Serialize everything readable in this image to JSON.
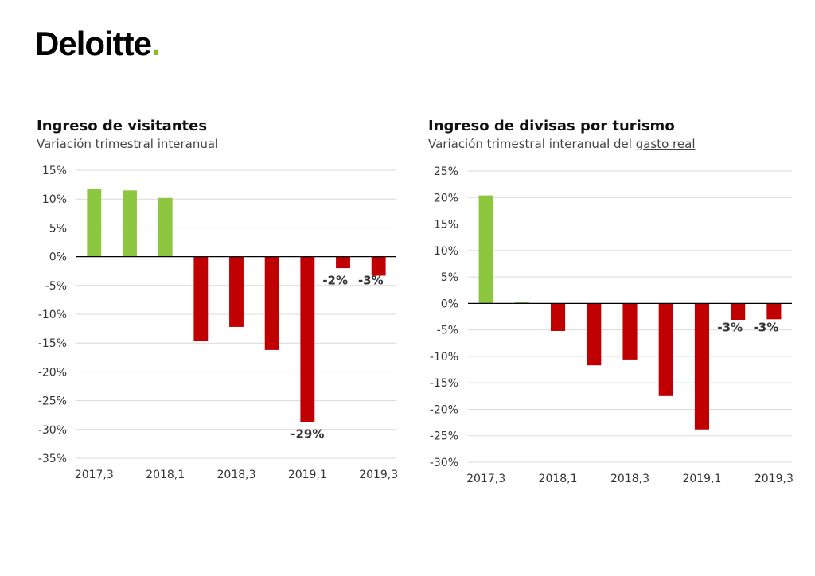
{
  "logo": {
    "text": "Deloitte",
    "dot": "."
  },
  "colors": {
    "positive": "#8dc63f",
    "negative": "#c00000",
    "grid": "#d9d9d9",
    "axis": "#000000",
    "brand_green": "#86bc25"
  },
  "chart_data": [
    {
      "type": "bar",
      "title": "Ingreso de visitantes",
      "subtitle": "Variación trimestral interanual",
      "categories": [
        "2017,3",
        "2017,4",
        "2018,1",
        "2018,2",
        "2018,3",
        "2018,4",
        "2019,1",
        "2019,2",
        "2019,3"
      ],
      "tick_labels": [
        "2017,3",
        "2018,1",
        "2018,3",
        "2019,1",
        "2019,3"
      ],
      "values": [
        11.8,
        11.5,
        10.2,
        -14.7,
        -12.2,
        -16.2,
        -28.7,
        -2.0,
        -3.3
      ],
      "data_labels": [
        "",
        "",
        "",
        "",
        "",
        "",
        "-29%",
        "-2%",
        "-3%"
      ],
      "y_ticks": [
        "15%",
        "10%",
        "5%",
        "0%",
        "-5%",
        "-10%",
        "-15%",
        "-20%",
        "-25%",
        "-30%",
        "-35%"
      ],
      "ylim": [
        -35,
        15
      ],
      "grid": true
    },
    {
      "type": "bar",
      "title": "Ingreso de divisas por turismo",
      "subtitle_prefix": "Variación trimestral interanual del ",
      "subtitle_underlined": "gasto real",
      "categories": [
        "2017,3",
        "2017,4",
        "2018,1",
        "2018,2",
        "2018,3",
        "2018,4",
        "2019,1",
        "2019,2",
        "2019,3"
      ],
      "tick_labels": [
        "2017,3",
        "2018,1",
        "2018,3",
        "2019,1",
        "2019,3"
      ],
      "values": [
        20.4,
        0.3,
        -5.2,
        -11.7,
        -10.6,
        -17.5,
        -23.8,
        -3.1,
        -3.0
      ],
      "data_labels": [
        "",
        "",
        "",
        "",
        "",
        "",
        "",
        "-3%",
        "-3%"
      ],
      "y_ticks": [
        "25%",
        "20%",
        "15%",
        "10%",
        "5%",
        "0%",
        "-5%",
        "-10%",
        "-15%",
        "-20%",
        "-25%",
        "-30%"
      ],
      "ylim": [
        -30,
        25
      ],
      "grid": true
    }
  ]
}
